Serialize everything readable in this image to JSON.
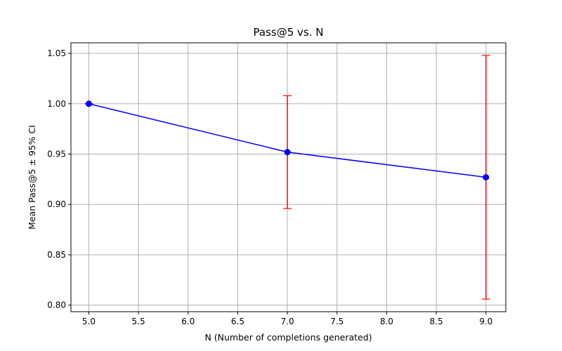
{
  "chart_data": {
    "type": "line",
    "title": "Pass@5 vs. N",
    "xlabel": "N (Number of completions generated)",
    "ylabel": "Mean Pass@5 ± 95% CI",
    "xlim": [
      4.82,
      9.2
    ],
    "ylim": [
      0.7935,
      1.0605
    ],
    "x_ticks": [
      5.0,
      5.5,
      6.0,
      6.5,
      7.0,
      7.5,
      8.0,
      8.5,
      9.0
    ],
    "x_tick_labels": [
      "5.0",
      "5.5",
      "6.0",
      "6.5",
      "7.0",
      "7.5",
      "8.0",
      "8.5",
      "9.0"
    ],
    "y_ticks": [
      0.8,
      0.85,
      0.9,
      0.95,
      1.0,
      1.05
    ],
    "y_tick_labels": [
      "0.80",
      "0.85",
      "0.90",
      "0.95",
      "1.00",
      "1.05"
    ],
    "grid": true,
    "series": [
      {
        "x": [
          5,
          7,
          9
        ],
        "values": [
          1.0,
          0.952,
          0.927
        ],
        "ci_lower": [
          1.0,
          0.896,
          0.806
        ],
        "ci_upper": [
          1.0,
          1.008,
          1.048
        ],
        "line_color": "#0000ff",
        "errorbar_color": "#ff0000"
      }
    ]
  }
}
